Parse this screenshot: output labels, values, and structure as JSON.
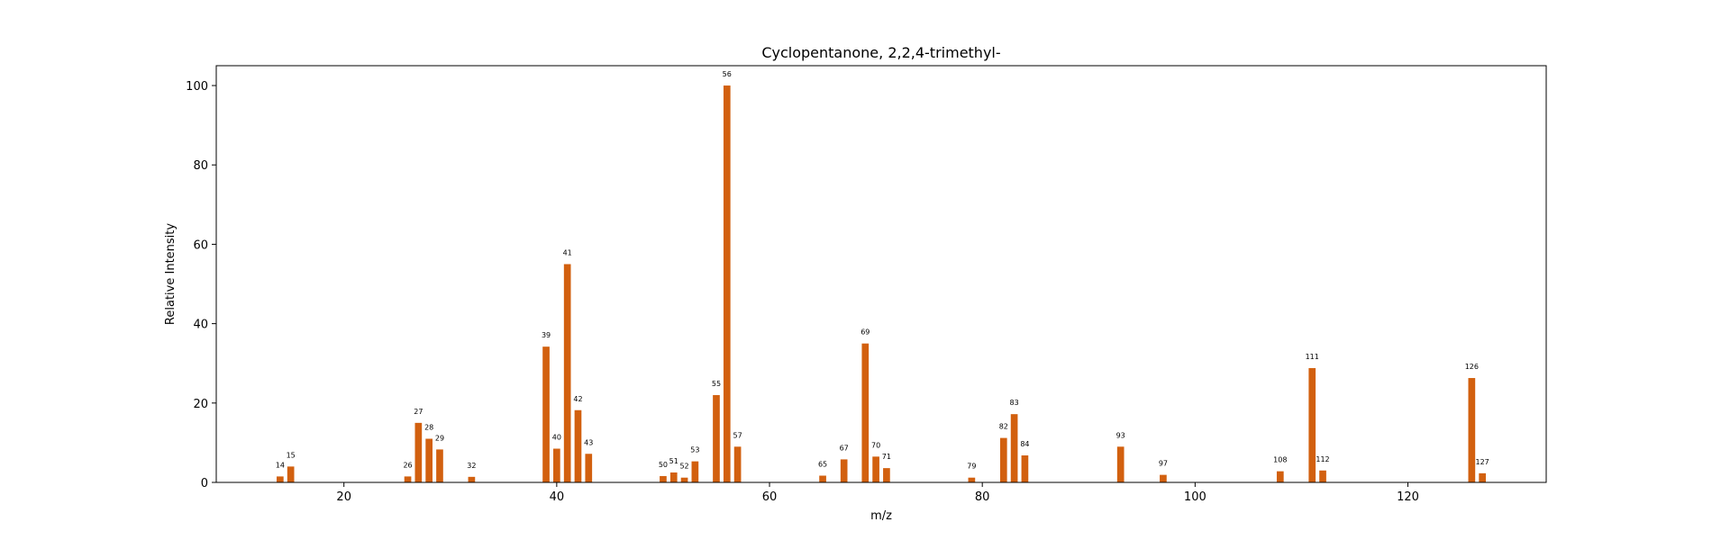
{
  "chart_data": {
    "type": "bar",
    "title": "Cyclopentanone, 2,2,4-trimethyl-",
    "xlabel": "m/z",
    "ylabel": "Relative Intensity",
    "xlim": [
      8,
      133
    ],
    "ylim": [
      0,
      105
    ],
    "xticks": [
      20,
      40,
      60,
      80,
      100,
      120
    ],
    "yticks": [
      0,
      20,
      40,
      60,
      80,
      100
    ],
    "grid": false,
    "bar_color": "#d2600f",
    "points": [
      {
        "x": 14,
        "y": 1.5
      },
      {
        "x": 15,
        "y": 4
      },
      {
        "x": 26,
        "y": 1.5
      },
      {
        "x": 27,
        "y": 15
      },
      {
        "x": 28,
        "y": 11
      },
      {
        "x": 29,
        "y": 8.3
      },
      {
        "x": 32,
        "y": 1.4
      },
      {
        "x": 39,
        "y": 34.2
      },
      {
        "x": 40,
        "y": 8.5
      },
      {
        "x": 41,
        "y": 55
      },
      {
        "x": 42,
        "y": 18.2
      },
      {
        "x": 43,
        "y": 7.2
      },
      {
        "x": 50,
        "y": 1.6
      },
      {
        "x": 51,
        "y": 2.5
      },
      {
        "x": 52,
        "y": 1.2
      },
      {
        "x": 53,
        "y": 5.3
      },
      {
        "x": 55,
        "y": 22
      },
      {
        "x": 56,
        "y": 100
      },
      {
        "x": 57,
        "y": 9
      },
      {
        "x": 65,
        "y": 1.7
      },
      {
        "x": 67,
        "y": 5.8
      },
      {
        "x": 69,
        "y": 35
      },
      {
        "x": 70,
        "y": 6.5
      },
      {
        "x": 71,
        "y": 3.6
      },
      {
        "x": 79,
        "y": 1.2
      },
      {
        "x": 82,
        "y": 11.2
      },
      {
        "x": 83,
        "y": 17.2
      },
      {
        "x": 84,
        "y": 6.8
      },
      {
        "x": 93,
        "y": 9
      },
      {
        "x": 97,
        "y": 1.9
      },
      {
        "x": 108,
        "y": 2.8
      },
      {
        "x": 111,
        "y": 28.8
      },
      {
        "x": 112,
        "y": 3
      },
      {
        "x": 126,
        "y": 26.3
      },
      {
        "x": 127,
        "y": 2.3
      }
    ]
  }
}
